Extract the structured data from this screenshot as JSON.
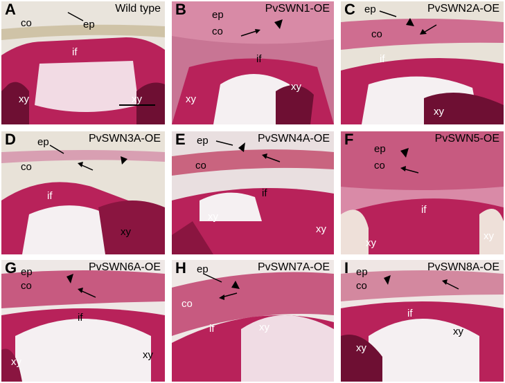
{
  "panels": [
    {
      "letter": "A",
      "title": "Wild type",
      "labels": {
        "co": "co",
        "ep": "ep",
        "if": "if",
        "xy1": "xy",
        "xy2": "xy"
      }
    },
    {
      "letter": "B",
      "title": "PvSWN1-OE",
      "labels": {
        "ep": "ep",
        "co": "co",
        "if": "if",
        "xy1": "xy",
        "xy2": "xy"
      }
    },
    {
      "letter": "C",
      "title": "PvSWN2A-OE",
      "labels": {
        "ep": "ep",
        "co": "co",
        "if": "if",
        "xy1": "xy"
      }
    },
    {
      "letter": "D",
      "title": "PvSWN3A-OE",
      "labels": {
        "ep": "ep",
        "co": "co",
        "if": "if",
        "xy1": "xy"
      }
    },
    {
      "letter": "E",
      "title": "PvSWN4A-OE",
      "labels": {
        "ep": "ep",
        "co": "co",
        "if": "if",
        "xy1": "xy",
        "xy2": "xy"
      }
    },
    {
      "letter": "F",
      "title": "PvSWN5-OE",
      "labels": {
        "ep": "ep",
        "co": "co",
        "if": "if",
        "xy1": "xy",
        "xy2": "xy"
      }
    },
    {
      "letter": "G",
      "title": "PvSWN6A-OE",
      "labels": {
        "ep": "ep",
        "co": "co",
        "if": "if",
        "xy1": "xy",
        "xy2": "xy"
      }
    },
    {
      "letter": "H",
      "title": "PvSWN7A-OE",
      "labels": {
        "ep": "ep",
        "co": "co",
        "if": "if",
        "xy1": "xy"
      }
    },
    {
      "letter": "I",
      "title": "PvSWN8A-OE",
      "labels": {
        "ep": "ep",
        "co": "co",
        "if": "if",
        "xy1": "xy",
        "xy2": "xy"
      }
    }
  ],
  "colors": {
    "stain": "#b8225a",
    "stain_light": "#e7a7bd",
    "stain_dark": "#6e0f33",
    "cortex": "#d9c8c8",
    "background": "#f3eef0"
  }
}
